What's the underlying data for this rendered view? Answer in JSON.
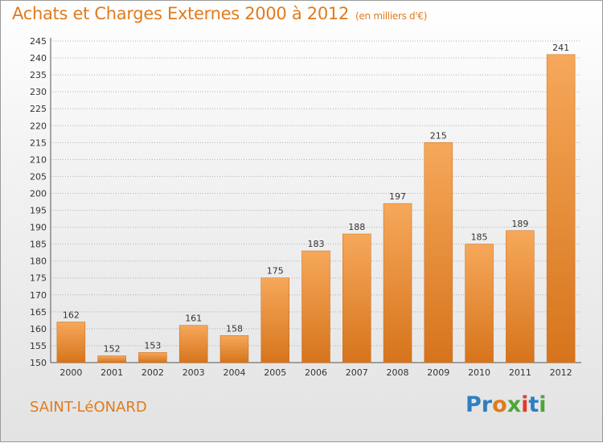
{
  "title": "Achats et Charges Externes 2000 à 2012",
  "subtitle": "(en milliers d'€)",
  "commune": "SAINT-LéONARD",
  "logo": {
    "text": "Proxiti",
    "letter_colors": [
      "#2f7fc1",
      "#2f7fc1",
      "#e07b1c",
      "#4fa53a",
      "#e03a2f",
      "#2f7fc1",
      "#4fa53a"
    ]
  },
  "colors": {
    "accent": "#e07b1c",
    "bar_top": "#f6a85a",
    "bar_bottom": "#d6741c",
    "grid": "#b0b0b0"
  },
  "chart_data": {
    "type": "bar",
    "categories": [
      "2000",
      "2001",
      "2002",
      "2003",
      "2004",
      "2005",
      "2006",
      "2007",
      "2008",
      "2009",
      "2010",
      "2011",
      "2012"
    ],
    "values": [
      162,
      152,
      153,
      161,
      158,
      175,
      183,
      188,
      197,
      215,
      185,
      189,
      241
    ],
    "ylim": [
      150,
      245
    ],
    "yticks": [
      150,
      155,
      160,
      165,
      170,
      175,
      180,
      185,
      190,
      195,
      200,
      205,
      210,
      215,
      220,
      225,
      230,
      235,
      240,
      245
    ],
    "grid": true,
    "xlabel": "",
    "ylabel": ""
  }
}
